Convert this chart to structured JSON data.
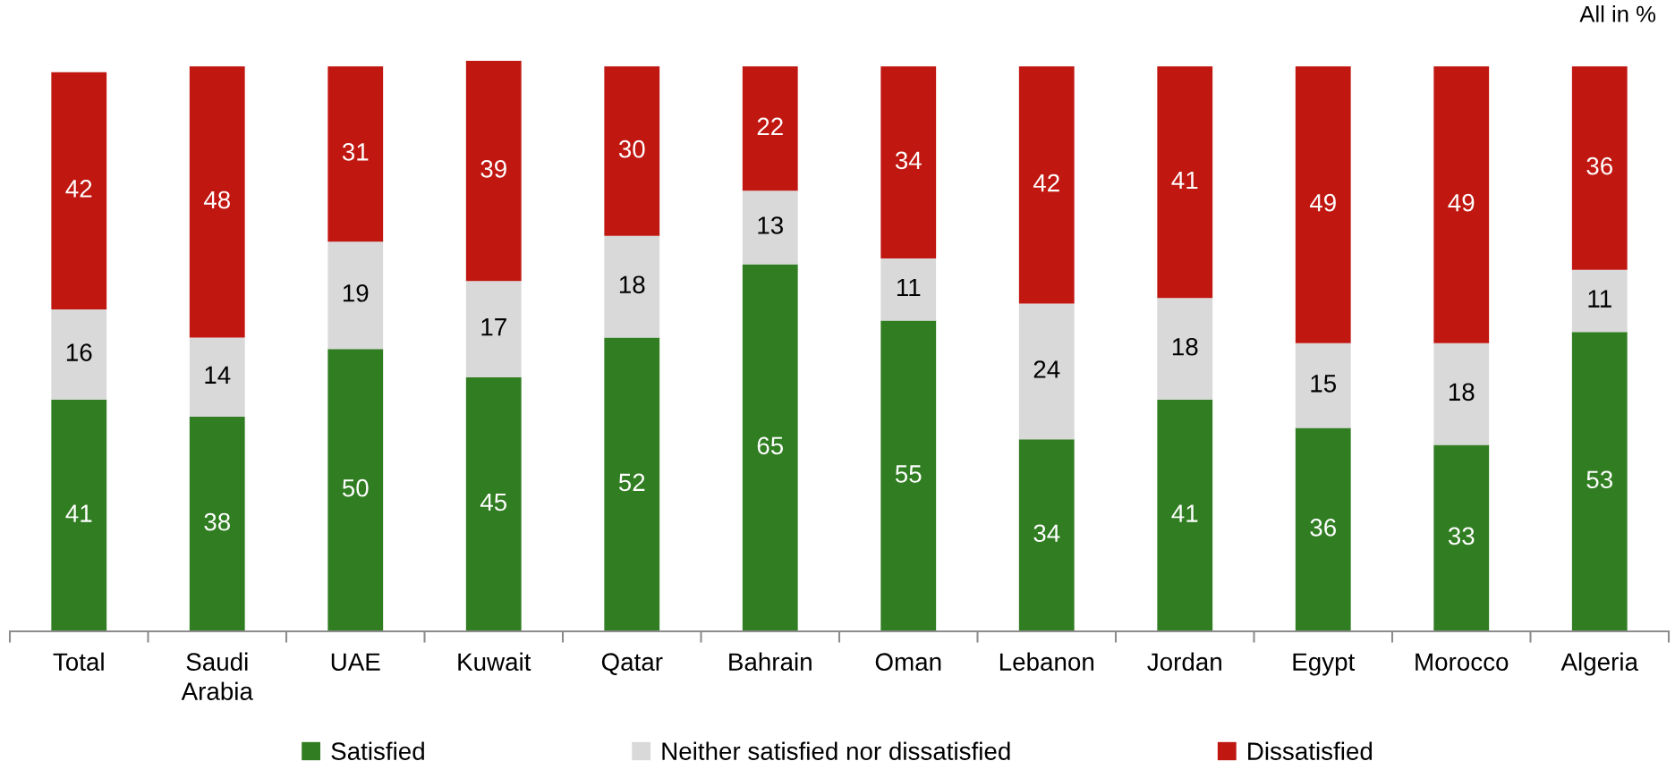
{
  "chart_data": {
    "type": "bar",
    "stacked": true,
    "categories": [
      "Total",
      "Saudi\nArabia",
      "UAE",
      "Kuwait",
      "Qatar",
      "Bahrain",
      "Oman",
      "Lebanon",
      "Jordan",
      "Egypt",
      "Morocco",
      "Algeria"
    ],
    "series": [
      {
        "name": "Satisfied",
        "color": "#317d22",
        "values": [
          41,
          38,
          50,
          45,
          52,
          65,
          55,
          34,
          41,
          36,
          33,
          53
        ]
      },
      {
        "name": "Neither satisfied nor dissatisfied",
        "color": "#d9d9d9",
        "values": [
          16,
          14,
          19,
          17,
          18,
          13,
          11,
          24,
          18,
          15,
          18,
          11
        ]
      },
      {
        "name": "Dissatisfied",
        "color": "#c01711",
        "values": [
          42,
          48,
          31,
          39,
          30,
          22,
          34,
          42,
          41,
          49,
          49,
          36
        ]
      }
    ],
    "data_labels": true,
    "legend": "bottom",
    "grid": false,
    "tick_labels": "x",
    "annotations": [
      "All in %"
    ]
  }
}
